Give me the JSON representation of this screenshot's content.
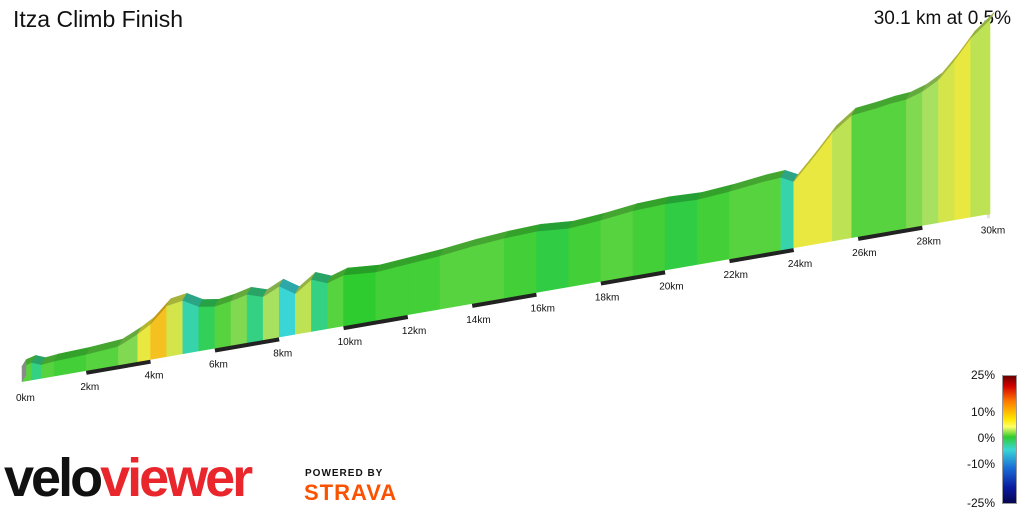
{
  "header": {
    "title": "Itza Climb Finish",
    "summary": "30.1 km at 0.5%"
  },
  "chart_data": {
    "type": "area",
    "title": "Itza Climb Finish",
    "distance_label_suffix": "km",
    "x_ticks": [
      0,
      2,
      4,
      6,
      8,
      10,
      12,
      14,
      16,
      18,
      20,
      22,
      24,
      26,
      28,
      30
    ],
    "x_tick_labels": [
      "0km",
      "2km",
      "4km",
      "6km",
      "8km",
      "10km",
      "12km",
      "14km",
      "16km",
      "18km",
      "20km",
      "22km",
      "24km",
      "26km",
      "28km",
      "30km"
    ],
    "xlim": [
      0,
      30.1
    ],
    "profile": {
      "distance_km": [
        0,
        0.3,
        0.6,
        1.0,
        2.0,
        3.0,
        3.6,
        4.0,
        4.5,
        5.0,
        5.5,
        6.0,
        6.5,
        7.0,
        7.5,
        8.0,
        8.5,
        9.0,
        9.5,
        10.0,
        11.0,
        12.0,
        13.0,
        14.0,
        15.0,
        16.0,
        17.0,
        18.0,
        19.0,
        20.0,
        21.0,
        22.0,
        23.0,
        23.6,
        24.0,
        24.6,
        25.2,
        25.8,
        26.5,
        27.0,
        27.5,
        28.0,
        28.5,
        29.0,
        29.5,
        30.1
      ],
      "elevation_m": [
        12,
        14,
        11,
        12,
        13,
        15,
        22,
        28,
        40,
        42,
        35,
        33,
        35,
        38,
        34,
        40,
        32,
        41,
        36,
        40,
        38,
        40,
        42,
        45,
        47,
        48,
        46,
        48,
        51,
        52,
        51,
        53,
        56,
        57,
        52,
        68,
        85,
        96,
        98,
        100,
        101,
        105,
        112,
        125,
        140,
        152
      ],
      "gradient_pct": [
        1,
        -2,
        1,
        0.5,
        1,
        2,
        6,
        8,
        5,
        -3,
        -1,
        1,
        2,
        -2,
        3,
        -4,
        4,
        -2,
        1,
        0,
        0.5,
        0.5,
        1,
        1,
        0.5,
        -0.5,
        0.5,
        1,
        0.5,
        -0.5,
        0.5,
        1,
        1,
        -3,
        6,
        6,
        4,
        1,
        1,
        1,
        2,
        3,
        5,
        6,
        4
      ]
    },
    "legend": {
      "type": "gradient",
      "labels": [
        "25%",
        "10%",
        "0%",
        "-10%",
        "-25%"
      ],
      "values": [
        25,
        10,
        0,
        -10,
        -25
      ]
    }
  },
  "branding": {
    "logo_part1": "velo",
    "logo_part2": "viewer",
    "powered_by": "POWERED BY",
    "strava": "STRAVA"
  }
}
